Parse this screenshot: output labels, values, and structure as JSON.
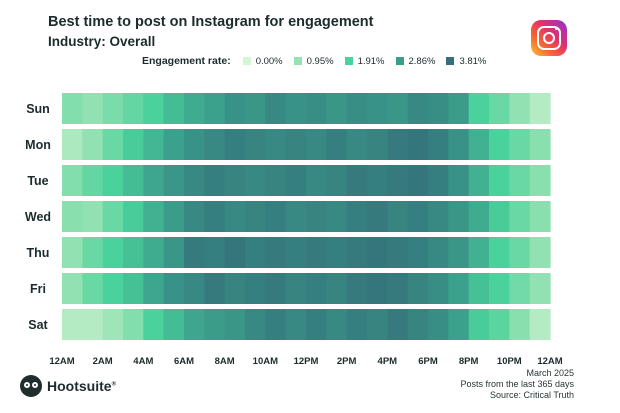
{
  "header": {
    "title": "Best time to post on Instagram for engagement",
    "subtitle": "Industry: Overall"
  },
  "legend": {
    "title": "Engagement rate:",
    "items": [
      {
        "label": "0.00%",
        "color": "#d6f5d4"
      },
      {
        "label": "0.95%",
        "color": "#95e2b3"
      },
      {
        "label": "1.91%",
        "color": "#4bd19b"
      },
      {
        "label": "2.86%",
        "color": "#3b9e8b"
      },
      {
        "label": "3.81%",
        "color": "#34707a"
      }
    ]
  },
  "chart_data": {
    "type": "heatmap",
    "title": "Best time to post on Instagram for engagement",
    "subtitle": "Industry: Overall",
    "value_unit": "%",
    "value_range": [
      0.0,
      3.81
    ],
    "rows": [
      "Sun",
      "Mon",
      "Tue",
      "Wed",
      "Thu",
      "Fri",
      "Sat"
    ],
    "columns": [
      "12AM",
      "1AM",
      "2AM",
      "3AM",
      "4AM",
      "5AM",
      "6AM",
      "7AM",
      "8AM",
      "9AM",
      "10AM",
      "11AM",
      "12PM",
      "1PM",
      "2PM",
      "3PM",
      "4PM",
      "5PM",
      "6PM",
      "7PM",
      "8PM",
      "9PM",
      "10PM",
      "11PM"
    ],
    "x_tick_labels": [
      "12AM",
      "2AM",
      "4AM",
      "6AM",
      "8AM",
      "10AM",
      "12PM",
      "2PM",
      "4PM",
      "6PM",
      "8PM",
      "10PM",
      "12AM"
    ],
    "values": [
      [
        1.2,
        1.0,
        1.3,
        1.6,
        1.9,
        2.3,
        2.6,
        2.8,
        3.1,
        3.0,
        3.3,
        3.1,
        3.2,
        3.0,
        3.2,
        3.1,
        3.0,
        3.3,
        3.2,
        2.9,
        1.9,
        1.5,
        1.0,
        0.5
      ],
      [
        0.6,
        1.0,
        1.5,
        2.0,
        2.4,
        2.8,
        3.1,
        3.3,
        3.5,
        3.4,
        3.3,
        3.4,
        3.3,
        3.5,
        3.3,
        3.4,
        3.6,
        3.7,
        3.5,
        3.1,
        2.5,
        1.9,
        1.5,
        1.1
      ],
      [
        1.2,
        1.6,
        1.9,
        2.3,
        2.7,
        3.0,
        3.3,
        3.5,
        3.4,
        3.3,
        3.4,
        3.5,
        3.3,
        3.4,
        3.6,
        3.5,
        3.6,
        3.7,
        3.5,
        3.1,
        2.5,
        1.9,
        1.5,
        1.1
      ],
      [
        1.1,
        1.0,
        1.5,
        2.0,
        2.5,
        2.9,
        3.3,
        3.5,
        3.3,
        3.4,
        3.5,
        3.3,
        3.4,
        3.3,
        3.5,
        3.6,
        3.4,
        3.5,
        3.3,
        3.0,
        2.6,
        2.0,
        1.5,
        1.1
      ],
      [
        1.0,
        1.5,
        1.9,
        2.2,
        2.6,
        3.0,
        3.6,
        3.5,
        3.7,
        3.5,
        3.6,
        3.5,
        3.6,
        3.5,
        3.6,
        3.7,
        3.6,
        3.5,
        3.3,
        3.0,
        2.5,
        1.9,
        1.5,
        1.0
      ],
      [
        1.0,
        1.5,
        1.9,
        2.2,
        2.7,
        3.1,
        3.3,
        3.6,
        3.4,
        3.5,
        3.6,
        3.4,
        3.5,
        3.4,
        3.6,
        3.7,
        3.6,
        3.4,
        3.2,
        2.8,
        2.2,
        1.9,
        1.4,
        1.0
      ],
      [
        0.5,
        0.5,
        0.8,
        1.2,
        1.9,
        2.3,
        2.7,
        2.9,
        3.0,
        3.3,
        3.5,
        3.3,
        3.5,
        3.3,
        3.5,
        3.4,
        3.6,
        3.4,
        3.2,
        2.8,
        2.0,
        1.7,
        1.1,
        0.5
      ]
    ]
  },
  "footer": {
    "date": "March 2025",
    "period": "Posts from the last 365 days",
    "source": "Source: Critical Truth",
    "brand": "Hootsuite",
    "brand_mark": "®"
  },
  "icons": {
    "instagram": "instagram-logo-icon",
    "brand": "hootsuite-owl-icon"
  }
}
